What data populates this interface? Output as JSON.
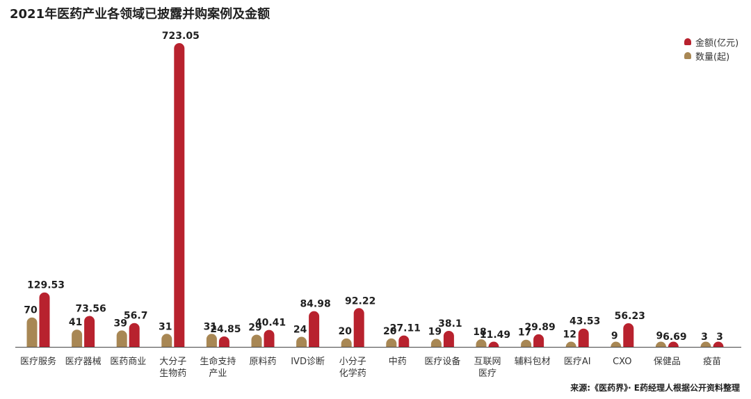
{
  "title": "2021年医药产业各领域已披露并购案例及金额",
  "source": "来源:《医药界》· E药经理人根据公开资料整理",
  "colors": {
    "amount": "#b8222e",
    "count": "#a88754",
    "axis": "#444444"
  },
  "chart_data": {
    "type": "bar",
    "categories": [
      [
        "医疗服务"
      ],
      [
        "医疗器械"
      ],
      [
        "医药商业"
      ],
      [
        "大分子",
        "生物药"
      ],
      [
        "生命支持",
        "产业"
      ],
      [
        "原料药"
      ],
      [
        "IVD诊断"
      ],
      [
        "小分子",
        "化学药"
      ],
      [
        "中药"
      ],
      [
        "医疗设备"
      ],
      [
        "互联网",
        "医疗"
      ],
      [
        "辅料包材"
      ],
      [
        "医疗AI"
      ],
      [
        "CXO"
      ],
      [
        "保健品"
      ],
      [
        "疫苗"
      ]
    ],
    "series": [
      {
        "name": "数量(起)",
        "values": [
          70,
          41,
          39,
          31,
          31,
          29,
          24,
          20,
          20,
          19,
          18,
          17,
          12,
          9,
          9,
          3
        ],
        "labels": [
          "70",
          "41",
          "39",
          "31",
          "31",
          "29",
          "24",
          "20",
          "20",
          "19",
          "18",
          "17",
          "12",
          "9",
          "9",
          "3"
        ]
      },
      {
        "name": "金额(亿元)",
        "values": [
          129.53,
          73.56,
          56.7,
          723.05,
          24.85,
          40.41,
          84.98,
          92.22,
          27.11,
          38.1,
          11.49,
          29.89,
          43.53,
          56.23,
          6.69,
          3
        ],
        "labels": [
          "129.53",
          "73.56",
          "56.7",
          "723.05",
          "24.85",
          "40.41",
          "84.98",
          "92.22",
          "27.11",
          "38.1",
          "11.49",
          "29.89",
          "43.53",
          "56.23",
          "6.69",
          "3"
        ]
      }
    ],
    "ylim": [
      0,
      723.05
    ],
    "legend": "top-right",
    "grid": false
  }
}
